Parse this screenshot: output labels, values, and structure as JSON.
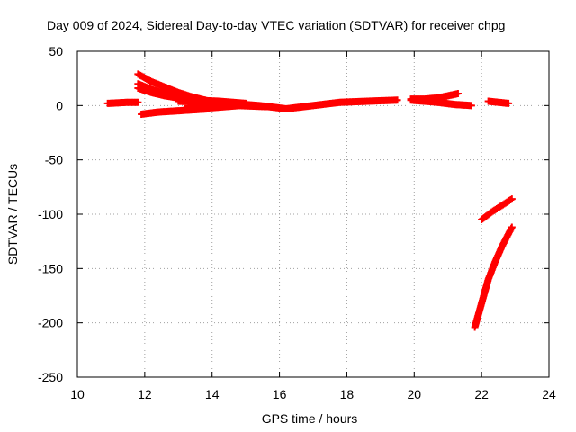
{
  "chart_data": {
    "type": "scatter",
    "title": "Day 009 of 2024, Sidereal Day-to-day VTEC variation (SDTVAR) for receiver chpg",
    "xlabel": "GPS time / hours",
    "ylabel": "SDTVAR / TECUs",
    "xlim": [
      10,
      24
    ],
    "ylim": [
      -250,
      50
    ],
    "xticks": [
      "10",
      "12",
      "14",
      "16",
      "18",
      "20",
      "22",
      "24"
    ],
    "yticks": [
      "50",
      "0",
      "-50",
      "-100",
      "-150",
      "-200",
      "-250"
    ],
    "grid": true,
    "legend": "none",
    "marker_color": "#ff0000",
    "series": [
      {
        "x": [
          10.9,
          11.2,
          11.5,
          11.8
        ],
        "y": [
          2,
          2.5,
          3,
          3
        ]
      },
      {
        "x": [
          11.8,
          12.2,
          12.6,
          13.0,
          13.4,
          13.8
        ],
        "y": [
          29,
          22,
          17,
          12,
          8,
          5
        ]
      },
      {
        "x": [
          11.8,
          12.2,
          12.6,
          13.0,
          13.4,
          13.8
        ],
        "y": [
          20,
          15,
          11,
          8,
          6,
          4
        ]
      },
      {
        "x": [
          11.8,
          12.2,
          12.6,
          13.0,
          13.4,
          13.8
        ],
        "y": [
          16,
          12,
          9,
          7,
          5,
          3
        ]
      },
      {
        "x": [
          11.9,
          12.4,
          12.9,
          13.4,
          13.9
        ],
        "y": [
          -8,
          -6,
          -5,
          -4,
          -3
        ]
      },
      {
        "x": [
          13.0,
          13.8,
          14.6,
          15.4,
          16.2,
          17.0,
          17.8,
          18.6,
          19.5
        ],
        "y": [
          4,
          3,
          2,
          0,
          -3,
          0,
          3,
          4,
          5
        ]
      },
      {
        "x": [
          13.2,
          14.0,
          14.8,
          15.6
        ],
        "y": [
          -3,
          -2,
          0,
          -1
        ]
      },
      {
        "x": [
          13.5,
          14.2,
          15.0
        ],
        "y": [
          5,
          4,
          2
        ]
      },
      {
        "x": [
          19.9,
          20.3,
          20.7,
          21.0,
          21.3
        ],
        "y": [
          6,
          6,
          7,
          9,
          11
        ]
      },
      {
        "x": [
          19.9,
          20.3,
          20.7,
          21.2,
          21.7
        ],
        "y": [
          5,
          4,
          3,
          1,
          0
        ]
      },
      {
        "x": [
          22.2,
          22.5,
          22.8
        ],
        "y": [
          4,
          3,
          2
        ]
      },
      {
        "x": [
          22.0,
          22.3,
          22.6,
          22.9
        ],
        "y": [
          -105,
          -98,
          -92,
          -86
        ]
      },
      {
        "x": [
          21.8,
          22.0,
          22.2,
          22.4,
          22.6,
          22.9
        ],
        "y": [
          -204,
          -182,
          -160,
          -144,
          -130,
          -112
        ]
      }
    ]
  }
}
